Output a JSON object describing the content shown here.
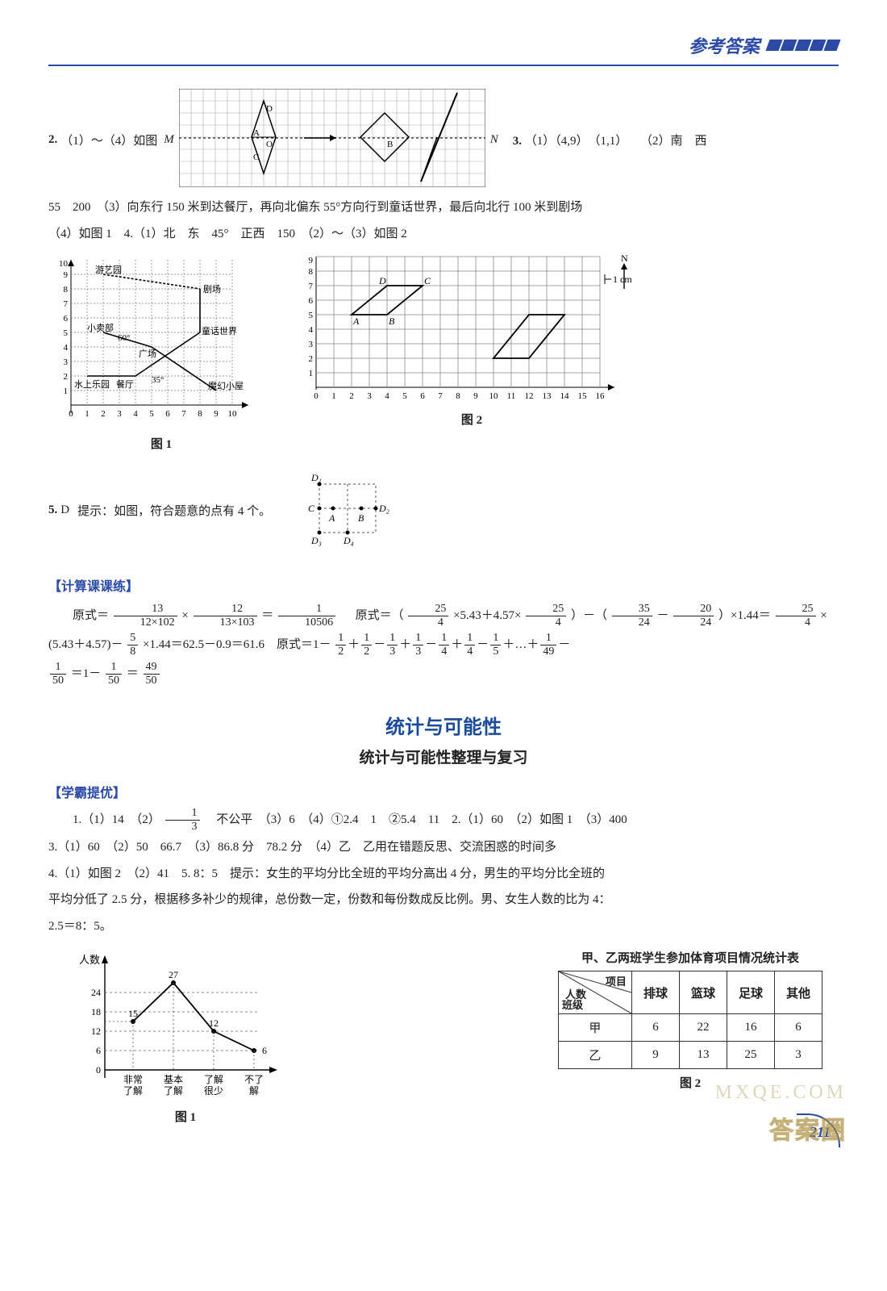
{
  "header": {
    "title": "参考答案"
  },
  "q2": {
    "prefix": "2.",
    "text": "（1）～（4）如图",
    "M": "M",
    "N": "N",
    "grid": {
      "cols": 24,
      "rows": 8,
      "cell": 15,
      "border": "#444",
      "line": "#999"
    },
    "ptA": "A",
    "ptB": "B",
    "ptC": "C",
    "ptD": "D",
    "ptO": "O"
  },
  "q3": {
    "prefix": "3.",
    "part1": "（1）（4,9）　（1,1）",
    "part2": "（2）南　西"
  },
  "line2": "55　200　（3）向东行 150 米到达餐厅，再向北偏东 55°方向行到童话世界，最后向北行 100 米到剧场",
  "line3": "（4）如图 1　4.（1）北　东　45°　正西　150　（2）～（3）如图 2",
  "fig1": {
    "label": "图 1",
    "xmax": 10,
    "ymax": 10,
    "labels": {
      "youyi": "游艺园",
      "juchang": "剧场",
      "xiaomai": "小卖部",
      "tonghua": "童话世界",
      "guangchang": "广场",
      "shuishang": "水上乐园",
      "canting": "餐厅",
      "mohuan": "魔幻小屋",
      "ang60": "60°",
      "ang35": "35°"
    }
  },
  "fig2": {
    "label": "图 2",
    "xmax": 16,
    "ymax": 9,
    "scale_lbl": "1 cm",
    "north": "N",
    "ptA": "A",
    "ptB": "B",
    "ptC": "C",
    "ptD": "D"
  },
  "q5": {
    "prefix": "5.",
    "ans": "D",
    "hint": "提示：如图，符合题意的点有 4 个。",
    "pts": {
      "A": "A",
      "B": "B",
      "C": "C",
      "D1": "D₁",
      "D2": "D₂",
      "D3": "D₃",
      "D4": "D₄"
    }
  },
  "calc_section": "【计算课课练】",
  "calc": {
    "indent": "原式＝",
    "f1n": "13",
    "f1d": "12×102",
    "f2n": "12",
    "f2d": "13×103",
    "f3n": "1",
    "f3d": "10506",
    "eq2_pre": "原式＝（",
    "f4n": "25",
    "f4d": "4",
    "mul1": "×5.43＋4.57×",
    "f5n": "25",
    "f5d": "4",
    "close1": "）－（",
    "f6n": "35",
    "f6d": "24",
    "minus": "－",
    "f7n": "20",
    "f7d": "24",
    "close2": "）×1.44＝",
    "f8n": "25",
    "f8d": "4",
    "tail1": "×",
    "line2a": "(5.43＋4.57)－",
    "f9n": "5",
    "f9d": "8",
    "line2b": "×1.44＝62.5－0.9＝61.6　原式＝1－",
    "seq": [
      {
        "n": "1",
        "d": "2"
      },
      {
        "op": "＋"
      },
      {
        "n": "1",
        "d": "2"
      },
      {
        "op": "－"
      },
      {
        "n": "1",
        "d": "3"
      },
      {
        "op": "＋"
      },
      {
        "n": "1",
        "d": "3"
      },
      {
        "op": "－"
      },
      {
        "n": "1",
        "d": "4"
      },
      {
        "op": "＋"
      },
      {
        "n": "1",
        "d": "4"
      },
      {
        "op": "－"
      },
      {
        "n": "1",
        "d": "5"
      },
      {
        "op": "＋…＋"
      },
      {
        "n": "1",
        "d": "49"
      },
      {
        "op": "－"
      }
    ],
    "last_n": "1",
    "last_d": "50",
    "eq3a": "＝1－",
    "f10n": "1",
    "f10d": "50",
    "eq3b": "＝",
    "f11n": "49",
    "f11d": "50"
  },
  "chapter": {
    "title": "统计与可能性",
    "sub": "统计与可能性整理与复习"
  },
  "xueba": "【学霸提优】",
  "stats": {
    "l1a": "1.（1）14　（2）",
    "fr_n": "1",
    "fr_d": "3",
    "l1b": "　不公平　（3）6　（4）①2.4　1　②5.4　11　2.（1）60　（2）如图 1　（3）400",
    "l2": "3.（1）60　（2）50　66.7　（3）86.8 分　78.2 分　（4）乙　乙用在错题反思、交流困惑的时间多",
    "l3": "4.（1）如图 2　（2）41　5. 8：5　提示：女生的平均分比全班的平均分高出 4 分，男生的平均分比全班的",
    "l4": "平均分低了 2.5 分，根据移多补少的规律，总份数一定，份数和每份数成反比例。男、女生人数的比为 4：",
    "l5": "2.5＝8：5。"
  },
  "barchart": {
    "label": "图 1",
    "ylabel": "人数",
    "yticks": [
      0,
      6,
      12,
      18,
      24
    ],
    "cats": [
      "非常了解",
      "基本了解",
      "了解很少",
      "不了解"
    ],
    "values": [
      15,
      27,
      12,
      6
    ],
    "pt_labels": [
      "15",
      "27",
      "12",
      "6"
    ],
    "color": "#000",
    "dash": "#444"
  },
  "table": {
    "title": "甲、乙两班学生参加体育项目情况统计表",
    "label": "图 2",
    "corner": {
      "top": "项目",
      "mid": "人数",
      "bot": "班级"
    },
    "cols": [
      "排球",
      "篮球",
      "足球",
      "其他"
    ],
    "rows": [
      {
        "h": "甲",
        "c": [
          "6",
          "22",
          "16",
          "6"
        ]
      },
      {
        "h": "乙",
        "c": [
          "9",
          "13",
          "25",
          "3"
        ]
      }
    ]
  },
  "pagenum": "211",
  "wm1": "答案圈",
  "wm2": "MXQE.COM"
}
